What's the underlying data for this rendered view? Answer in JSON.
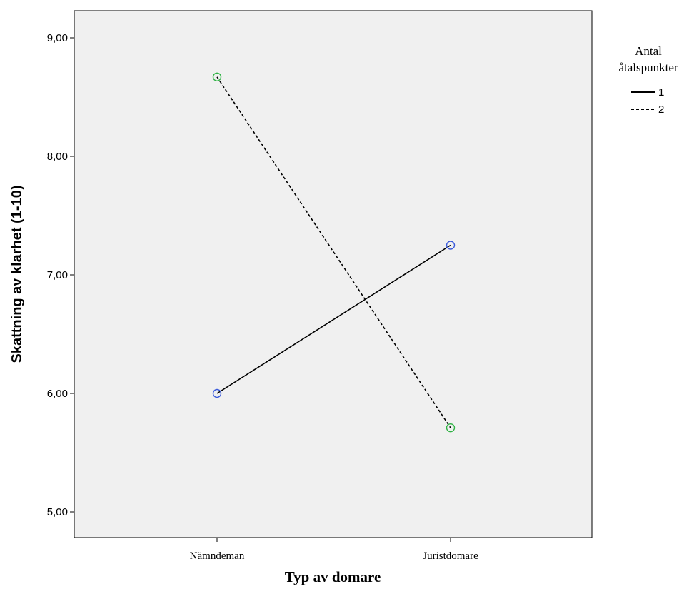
{
  "chart_data": {
    "type": "line",
    "categories": [
      "Nämndeman",
      "Juristdomare"
    ],
    "series": [
      {
        "name": "1",
        "values": [
          6.0,
          7.25
        ],
        "color": "#000000",
        "marker_color": "#3b5bdb",
        "dash": "solid"
      },
      {
        "name": "2",
        "values": [
          8.67,
          5.71
        ],
        "color": "#000000",
        "marker_color": "#2fb344",
        "dash": "dashed"
      }
    ],
    "ylim": [
      4.8,
      9.25
    ],
    "yticks": [
      5,
      6,
      7,
      8,
      9
    ],
    "ytick_labels": [
      "5,00",
      "6,00",
      "7,00",
      "8,00",
      "9,00"
    ],
    "xlabel": "Typ av domare",
    "ylabel": "Skattning av klarhet (1-10)",
    "legend": {
      "title_line1": "Antal",
      "title_line2": "åtalspunkter",
      "placement": "right"
    },
    "plot_background": "#f0f0f0",
    "grid": false
  }
}
